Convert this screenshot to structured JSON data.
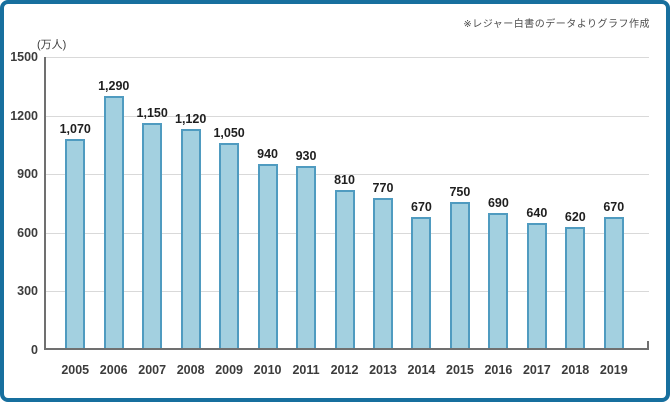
{
  "annotation": "※レジャー白書のデータよりグラフ作成",
  "chart_data": {
    "type": "bar",
    "title": "",
    "xlabel": "",
    "ylabel": "(万人)",
    "categories": [
      "2005",
      "2006",
      "2007",
      "2008",
      "2009",
      "2010",
      "2011",
      "2012",
      "2013",
      "2014",
      "2015",
      "2016",
      "2017",
      "2018",
      "2019"
    ],
    "values": [
      1070,
      1290,
      1150,
      1120,
      1050,
      940,
      930,
      810,
      770,
      670,
      750,
      690,
      640,
      620,
      670
    ],
    "value_labels": [
      "1,070",
      "1,290",
      "1,150",
      "1,120",
      "1,050",
      "940",
      "930",
      "810",
      "770",
      "670",
      "750",
      "690",
      "640",
      "620",
      "670"
    ],
    "ylim": [
      0,
      1500
    ],
    "yticks": [
      0,
      300,
      600,
      900,
      1200,
      1500
    ],
    "ytick_labels": [
      "0",
      "300",
      "600",
      "900",
      "1200",
      "1500"
    ],
    "grid": true,
    "legend": "none",
    "annotation": "※レジャー白書のデータよりグラフ作成",
    "colors": {
      "bar_fill": "#a3d0e0",
      "bar_border": "#4f9bc0",
      "frame_border": "#176f9e",
      "gridline": "#d9d9d9",
      "axis": "#707070",
      "label_text": "#1f1f1f",
      "tick_text": "#3c3c3c",
      "note_text": "#4d4d4d"
    }
  }
}
